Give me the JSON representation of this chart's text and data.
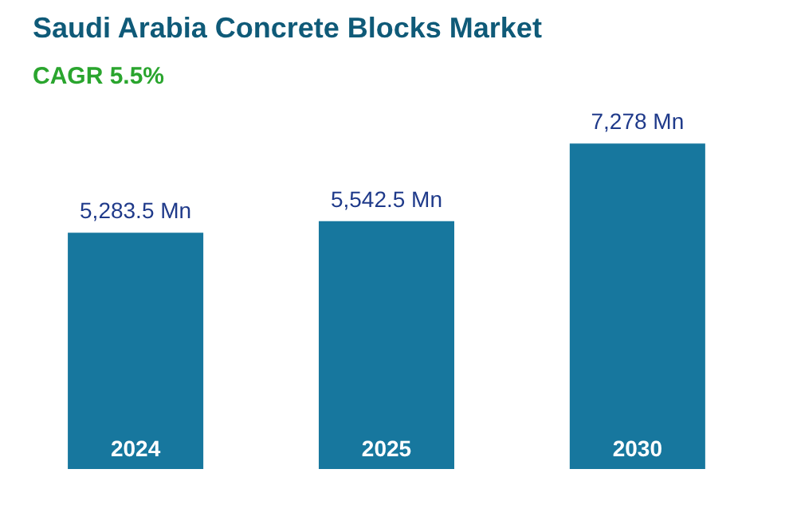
{
  "chart_data": {
    "type": "bar",
    "title": "Saudi Arabia Concrete Blocks Market",
    "subtitle": "CAGR 5.5%",
    "categories": [
      "2024",
      "2025",
      "2030"
    ],
    "values": [
      5283.5,
      5542.5,
      7278
    ],
    "value_labels": [
      "5,283.5 Mn",
      "5,542.5 Mn",
      "7,278 Mn"
    ],
    "color": "#17779e",
    "grid": false
  }
}
